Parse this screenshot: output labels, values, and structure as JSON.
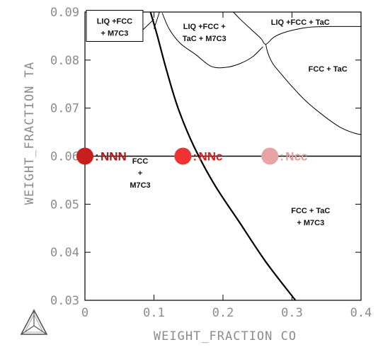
{
  "chart_data": {
    "type": "scatter",
    "xlabel": "WEIGHT_FRACTION CO",
    "ylabel": "WEIGHT_FRACTION TA",
    "xlim": [
      0,
      0.4
    ],
    "ylim": [
      0.03,
      0.09
    ],
    "x_ticks": [
      0,
      0.1,
      0.2,
      0.3,
      0.4
    ],
    "x_tick_labels": [
      "0",
      "0.1",
      "0.2",
      "0.3",
      "0.4"
    ],
    "y_ticks": [
      0.03,
      0.04,
      0.05,
      0.06,
      0.07,
      0.08,
      0.09
    ],
    "y_tick_labels": [
      "0.03",
      "0.04",
      "0.05",
      "0.06",
      "0.07",
      "0.08",
      "0.09"
    ],
    "grid": false,
    "reference_line": {
      "y": 0.06
    },
    "boundaries": [
      {
        "name": "main",
        "bold": true,
        "x": [
          0.095,
          0.105,
          0.118,
          0.135,
          0.158,
          0.188,
          0.225,
          0.262,
          0.305
        ],
        "y": [
          0.09,
          0.085,
          0.078,
          0.07,
          0.062,
          0.054,
          0.046,
          0.038,
          0.03
        ]
      },
      {
        "name": "liq-left",
        "bold": false,
        "x": [
          0.108,
          0.103,
          0.1
        ],
        "y": [
          0.09,
          0.0878,
          0.0865
        ]
      },
      {
        "name": "liq-fcc-m7c3",
        "bold": false,
        "x": [
          0.112,
          0.122,
          0.138,
          0.16,
          0.183,
          0.205,
          0.225,
          0.243,
          0.258
        ],
        "y": [
          0.0898,
          0.0865,
          0.0835,
          0.0812,
          0.0787,
          0.0785,
          0.0793,
          0.0807,
          0.0828
        ]
      },
      {
        "name": "liq-tac",
        "bold": false,
        "x": [
          0.215,
          0.225,
          0.24,
          0.255,
          0.262,
          0.274,
          0.29,
          0.31,
          0.33,
          0.355,
          0.38,
          0.4
        ],
        "y": [
          0.09,
          0.0885,
          0.0865,
          0.0845,
          0.0833,
          0.0848,
          0.0858,
          0.0865,
          0.0869,
          0.087,
          0.087,
          0.087
        ]
      },
      {
        "name": "fcc-tac",
        "bold": false,
        "x": [
          0.262,
          0.265,
          0.272,
          0.285,
          0.3,
          0.32,
          0.345,
          0.37,
          0.39,
          0.4
        ],
        "y": [
          0.0833,
          0.0815,
          0.0793,
          0.077,
          0.0745,
          0.0715,
          0.0685,
          0.066,
          0.0648,
          0.0645
        ]
      }
    ],
    "markers": [
      {
        "label": "NNN",
        "x": 0.0,
        "y": 0.06,
        "color": "#c81e1e",
        "label_color": "#b01515"
      },
      {
        "label": "NNc",
        "x": 0.142,
        "y": 0.06,
        "color": "#f03232",
        "label_color": "#d81d1d"
      },
      {
        "label": "Ncc",
        "x": 0.268,
        "y": 0.06,
        "color": "#e8a4a4",
        "label_color": "#df9a9a"
      }
    ],
    "region_labels": [
      {
        "lines": [
          "LIQ +FCC",
          "+ M7C3"
        ],
        "x": 0.043,
        "y": 0.0869,
        "boxed": true
      },
      {
        "lines": [
          "LIQ +FCC +",
          "TaC + M7C3"
        ],
        "x": 0.173,
        "y": 0.0858
      },
      {
        "lines": [
          "LIQ +FCC + TaC"
        ],
        "x": 0.312,
        "y": 0.0879
      },
      {
        "lines": [
          "FCC + TaC"
        ],
        "x": 0.352,
        "y": 0.0782
      },
      {
        "lines": [
          "FCC",
          "+",
          "M7C3"
        ],
        "x": 0.08,
        "y": 0.0565
      },
      {
        "lines": [
          "FCC + TaC",
          "+ M7C3"
        ],
        "x": 0.327,
        "y": 0.0475
      }
    ],
    "colors": {
      "boundary": "#000000",
      "axis": "#000000",
      "tick_label": "#8c8c8c"
    }
  },
  "logo": {
    "name": "triangle-logo-icon"
  }
}
